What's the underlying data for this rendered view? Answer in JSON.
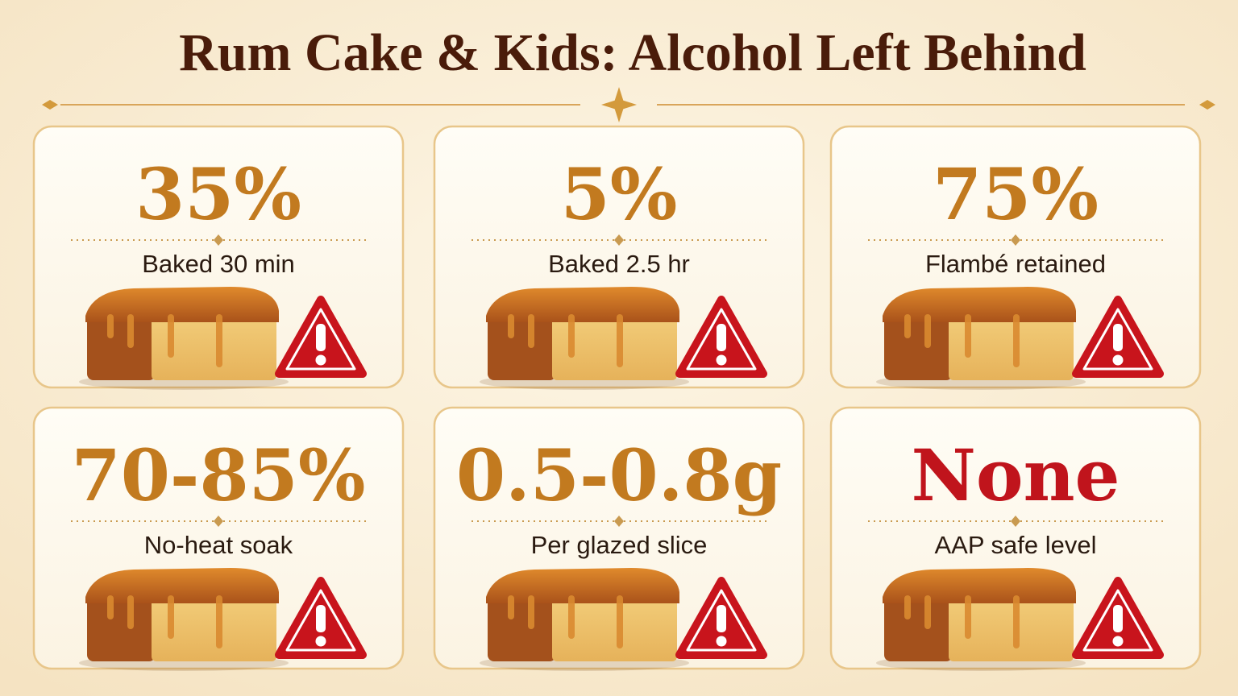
{
  "title": "Rum Cake & Kids: Alcohol Left Behind",
  "cards": [
    {
      "stat": "35%",
      "label": "Baked 30 min",
      "color": "#c27a1f"
    },
    {
      "stat": "5%",
      "label": "Baked 2.5 hr",
      "color": "#c27a1f"
    },
    {
      "stat": "75%",
      "label": "Flambé retained",
      "color": "#c27a1f"
    },
    {
      "stat": "70-85%",
      "label": "No-heat soak",
      "color": "#c27a1f"
    },
    {
      "stat": "0.5-0.8g",
      "label": "Per glazed slice",
      "color": "#c27a1f"
    },
    {
      "stat": "None",
      "label": "AAP safe level",
      "color": "#c0141c"
    }
  ]
}
